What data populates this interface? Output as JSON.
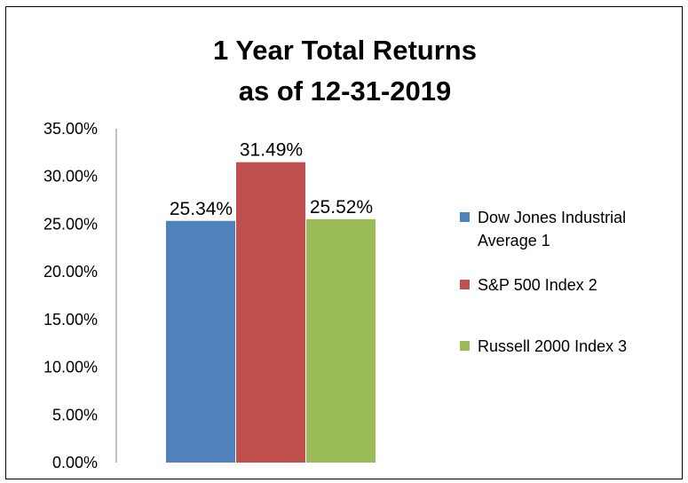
{
  "chart_data": {
    "type": "bar",
    "title_lines": [
      "1 Year Total Returns",
      "as of 12-31-2019"
    ],
    "series": [
      {
        "name": "Dow Jones Industrial Average 1",
        "legend_lines": [
          "Dow Jones Industrial",
          "Average 1"
        ],
        "value": 0.2534,
        "label": "25.34%",
        "color": "#4f81bd"
      },
      {
        "name": "S&P 500 Index 2",
        "legend_lines": [
          "S&P 500 Index 2"
        ],
        "value": 0.3149,
        "label": "31.49%",
        "color": "#c0504d"
      },
      {
        "name": "Russell 2000 Index 3",
        "legend_lines": [
          "Russell 2000 Index 3"
        ],
        "value": 0.2552,
        "label": "25.52%",
        "color": "#9bbb59"
      }
    ],
    "ylim": [
      0,
      0.35
    ],
    "yticks": [
      "0.00%",
      "5.00%",
      "10.00%",
      "15.00%",
      "20.00%",
      "25.00%",
      "30.00%",
      "35.00%"
    ],
    "grid": false,
    "legend_position": "right"
  }
}
